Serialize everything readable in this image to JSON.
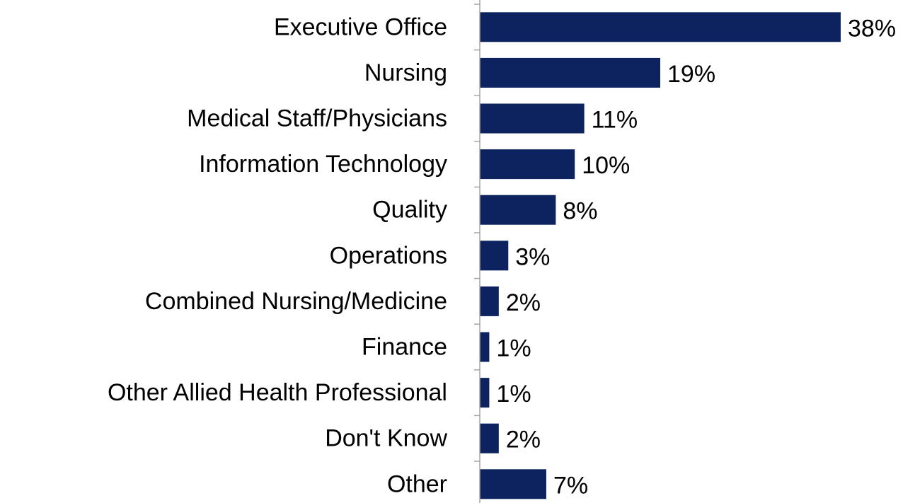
{
  "chart_data": {
    "type": "bar",
    "orientation": "horizontal",
    "categories": [
      "Executive Office",
      "Nursing",
      "Medical Staff/Physicians",
      "Information Technology",
      "Quality",
      "Operations",
      "Combined Nursing/Medicine",
      "Finance",
      "Other Allied Health Professional",
      "Don't Know",
      "Other"
    ],
    "values": [
      38,
      19,
      11,
      10,
      8,
      3,
      2,
      1,
      1,
      2,
      7
    ],
    "value_labels": [
      "38%",
      "19%",
      "11%",
      "10%",
      "8%",
      "3%",
      "2%",
      "1%",
      "1%",
      "2%",
      "7%"
    ],
    "color": "#0c2360"
  }
}
